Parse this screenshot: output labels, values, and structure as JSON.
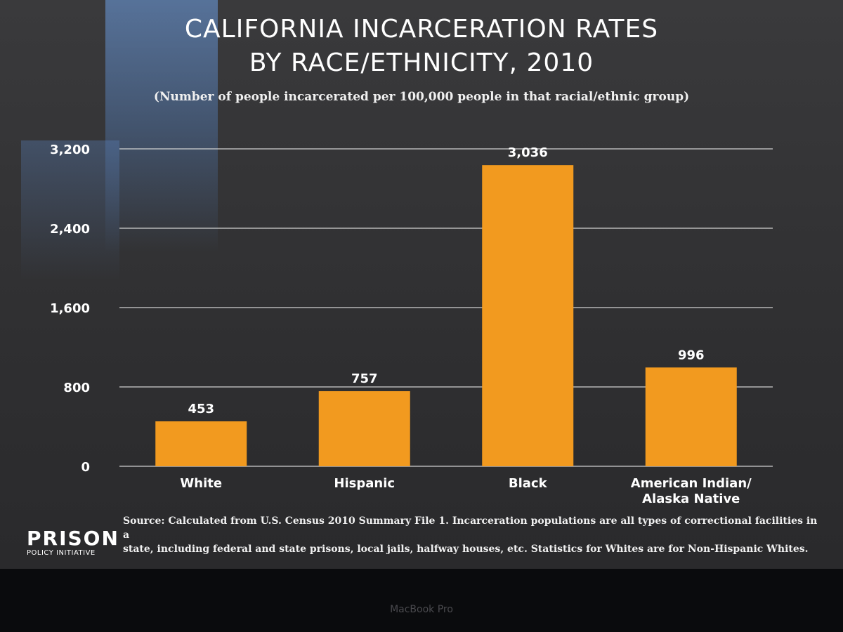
{
  "title_line1": "CALIFORNIA INCARCERATION RATES",
  "title_line2": "BY RACE/ETHNICITY, 2010",
  "subtitle": "(Number of people incarcerated per 100,000 people in that racial/ethnic group)",
  "source_line1": "Source: Calculated from U.S. Census 2010 Summary File 1. Incarceration populations are all types of correctional facilities in a",
  "source_line2": "state, including federal and state prisons, local jails, halfway houses, etc. Statistics for Whites are for Non-Hispanic Whites.",
  "logo": {
    "top": "PRISON",
    "bottom": "POLICY INITIATIVE"
  },
  "bezel_label": "MacBook Pro",
  "colors": {
    "bar": "#f29a1f",
    "gridline": "#d8d8d8",
    "text": "#ffffff"
  },
  "chart_data": {
    "type": "bar",
    "title": "CALIFORNIA INCARCERATION RATES BY RACE/ETHNICITY, 2010",
    "subtitle": "(Number of people incarcerated per 100,000 people in that racial/ethnic group)",
    "categories": [
      "White",
      "Hispanic",
      "Black",
      "American Indian/ Alaska Native"
    ],
    "category_lines": [
      [
        "White"
      ],
      [
        "Hispanic"
      ],
      [
        "Black"
      ],
      [
        "American Indian/",
        "Alaska Native"
      ]
    ],
    "values": [
      453,
      757,
      3036,
      996
    ],
    "data_labels": [
      "453",
      "757",
      "3,036",
      "996"
    ],
    "yticks": [
      0,
      800,
      1600,
      2400,
      3200
    ],
    "ytick_labels": [
      "0",
      "800",
      "1,600",
      "2,400",
      "3,200"
    ],
    "ylim": [
      0,
      3200
    ],
    "xlabel": "",
    "ylabel": "",
    "grid": true
  }
}
